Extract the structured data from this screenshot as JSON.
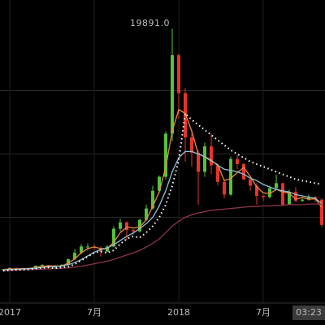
{
  "chart_data": {
    "type": "candlestick",
    "annotation": "19891.0",
    "categories": [
      null,
      "2017",
      null,
      null,
      null,
      null,
      null,
      null,
      null,
      null,
      null,
      null,
      null,
      null,
      "7月",
      null,
      null,
      null,
      null,
      null,
      null,
      null,
      null,
      null,
      null,
      null,
      null,
      "2018",
      null,
      null,
      null,
      null,
      null,
      null,
      null,
      null,
      null,
      null,
      null,
      null,
      "7月",
      null,
      null,
      null,
      null,
      null,
      null,
      "03:23",
      null,
      null
    ],
    "open": [
      850,
      900,
      1000,
      900,
      970,
      1000,
      1190,
      1240,
      1040,
      1200,
      1260,
      1700,
      2200,
      2700,
      2700,
      2600,
      2300,
      2700,
      4100,
      4600,
      4000,
      3900,
      4800,
      5700,
      7100,
      8200,
      11600,
      17800,
      14800,
      11300,
      10100,
      8600,
      10600,
      9100,
      7800,
      6800,
      9600,
      9200,
      8000,
      7500,
      6700,
      6600,
      7300,
      7700,
      6000,
      7000,
      6300,
      6400,
      6600,
      6400
    ],
    "high": [
      920,
      1050,
      1030,
      1000,
      1030,
      1200,
      1300,
      1250,
      1220,
      1300,
      1750,
      2500,
      2900,
      2950,
      2900,
      2700,
      2800,
      4300,
      4900,
      4700,
      4200,
      4900,
      6000,
      7500,
      8300,
      11800,
      19891,
      17900,
      15200,
      11800,
      10300,
      10900,
      11600,
      9200,
      8000,
      9800,
      9900,
      9300,
      8100,
      7700,
      6800,
      7500,
      8400,
      7700,
      7200,
      7400,
      6600,
      6800,
      6700,
      6500
    ],
    "low": [
      830,
      880,
      880,
      890,
      950,
      990,
      1150,
      950,
      1000,
      1150,
      1220,
      1650,
      2100,
      2400,
      2400,
      1900,
      2250,
      2650,
      3900,
      3200,
      3600,
      3800,
      4700,
      5600,
      6900,
      8000,
      11000,
      12800,
      9400,
      9000,
      6000,
      8200,
      8400,
      7500,
      6500,
      6700,
      8800,
      7900,
      7100,
      6000,
      6300,
      6500,
      7200,
      5900,
      6000,
      6200,
      6200,
      6300,
      6200,
      4200
    ],
    "close": [
      900,
      1000,
      900,
      970,
      1000,
      1190,
      1240,
      1040,
      1200,
      1260,
      1700,
      2200,
      2700,
      2700,
      2600,
      2300,
      2700,
      4100,
      4600,
      4000,
      3900,
      4800,
      5700,
      7100,
      8200,
      11600,
      17800,
      14800,
      11300,
      10100,
      8600,
      10600,
      9100,
      7800,
      6800,
      9600,
      9200,
      8000,
      7500,
      6700,
      6600,
      7300,
      7700,
      6000,
      7000,
      6300,
      6400,
      6600,
      6400,
      4400
    ],
    "up_color": "#56c23c",
    "down_color": "#e8322a",
    "lines": [
      {
        "color": "#e8893a",
        "style": "solid",
        "values": [
          880,
          930,
          930,
          960,
          960,
          1050,
          1140,
          1160,
          1160,
          1170,
          1390,
          1720,
          2200,
          2530,
          2670,
          2530,
          2530,
          3030,
          3800,
          4230,
          4170,
          4230,
          4800,
          5870,
          7000,
          8970,
          11800,
          13500,
          13200,
          11800,
          10000,
          9770,
          9430,
          9170,
          7900,
          8070,
          8530,
          8930,
          8230,
          7400,
          6930,
          6870,
          7200,
          7000,
          6900,
          6430,
          6570,
          6430,
          6470,
          5800
        ]
      },
      {
        "color": "#8fc0d8",
        "style": "solid",
        "values": [
          850,
          880,
          900,
          930,
          950,
          990,
          1050,
          1090,
          1120,
          1150,
          1260,
          1430,
          1660,
          1960,
          2260,
          2450,
          2580,
          2840,
          3170,
          3500,
          3770,
          4100,
          4500,
          5000,
          5900,
          7100,
          8600,
          9700,
          10200,
          10200,
          10000,
          9800,
          9500,
          9100,
          8800,
          8700,
          8600,
          8400,
          8100,
          7900,
          7600,
          7400,
          7200,
          7100,
          7000,
          6800,
          6700,
          6600,
          6500,
          6100
        ]
      },
      {
        "color": "#8e3548",
        "style": "solid",
        "values": [
          800,
          810,
          830,
          850,
          870,
          890,
          910,
          930,
          950,
          980,
          1020,
          1080,
          1150,
          1240,
          1340,
          1440,
          1540,
          1680,
          1850,
          2030,
          2200,
          2400,
          2650,
          2950,
          3300,
          3800,
          4300,
          4700,
          5000,
          5200,
          5350,
          5450,
          5550,
          5600,
          5650,
          5700,
          5750,
          5800,
          5850,
          5850,
          5900,
          5900,
          5950,
          5950,
          6000,
          6000,
          6000,
          6050,
          6050,
          6050
        ]
      },
      {
        "color": "#ffffff",
        "style": "dotted",
        "values": [
          780,
          830,
          850,
          880,
          900,
          950,
          1000,
          1050,
          980,
          1050,
          1100,
          1300,
          1600,
          1900,
          2200,
          2300,
          2200,
          2400,
          2900,
          3300,
          3500,
          3400,
          3800,
          4300,
          5000,
          6000,
          7500,
          9500,
          13200,
          12700,
          12300,
          11900,
          11500,
          11100,
          10700,
          10300,
          10000,
          9700,
          9400,
          9200,
          9000,
          8800,
          8600,
          8400,
          8200,
          8000,
          7900,
          7800,
          7700,
          7600
        ]
      }
    ],
    "ylim": [
      -1250,
      22150
    ],
    "gridlines": [
      5000,
      10000,
      15000
    ],
    "grid": true
  }
}
